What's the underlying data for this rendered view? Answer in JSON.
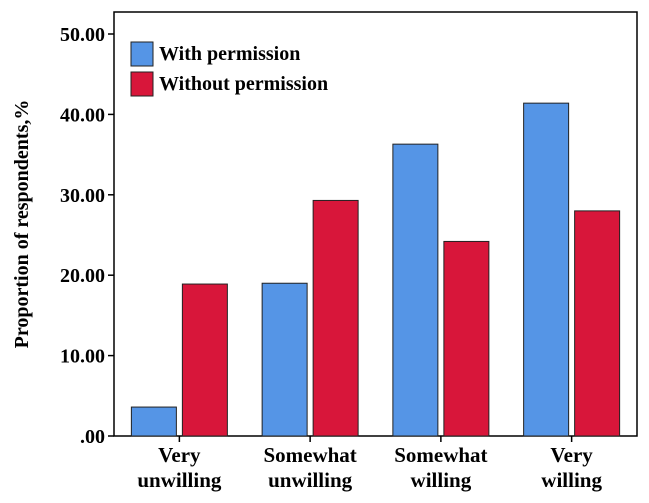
{
  "chart_data": {
    "type": "bar",
    "categories": [
      [
        "Very",
        "unwilling"
      ],
      [
        "Somewhat",
        "unwilling"
      ],
      [
        "Somewhat",
        "willing"
      ],
      [
        "Very",
        "willing"
      ]
    ],
    "series": [
      {
        "name": "With permission",
        "values": [
          3.6,
          19.0,
          36.3,
          41.4
        ],
        "color": "#5595E6"
      },
      {
        "name": "Without permission",
        "values": [
          18.9,
          29.3,
          24.2,
          28.0
        ],
        "color": "#D8163A"
      }
    ],
    "yticks": [
      ".00",
      "10.00",
      "20.00",
      "30.00",
      "40.00",
      "50.00"
    ],
    "ylabel": "Proportion of respondents,%",
    "xlabel": "",
    "ylim": [
      0,
      50
    ],
    "grid": false,
    "legend": "top-left"
  }
}
